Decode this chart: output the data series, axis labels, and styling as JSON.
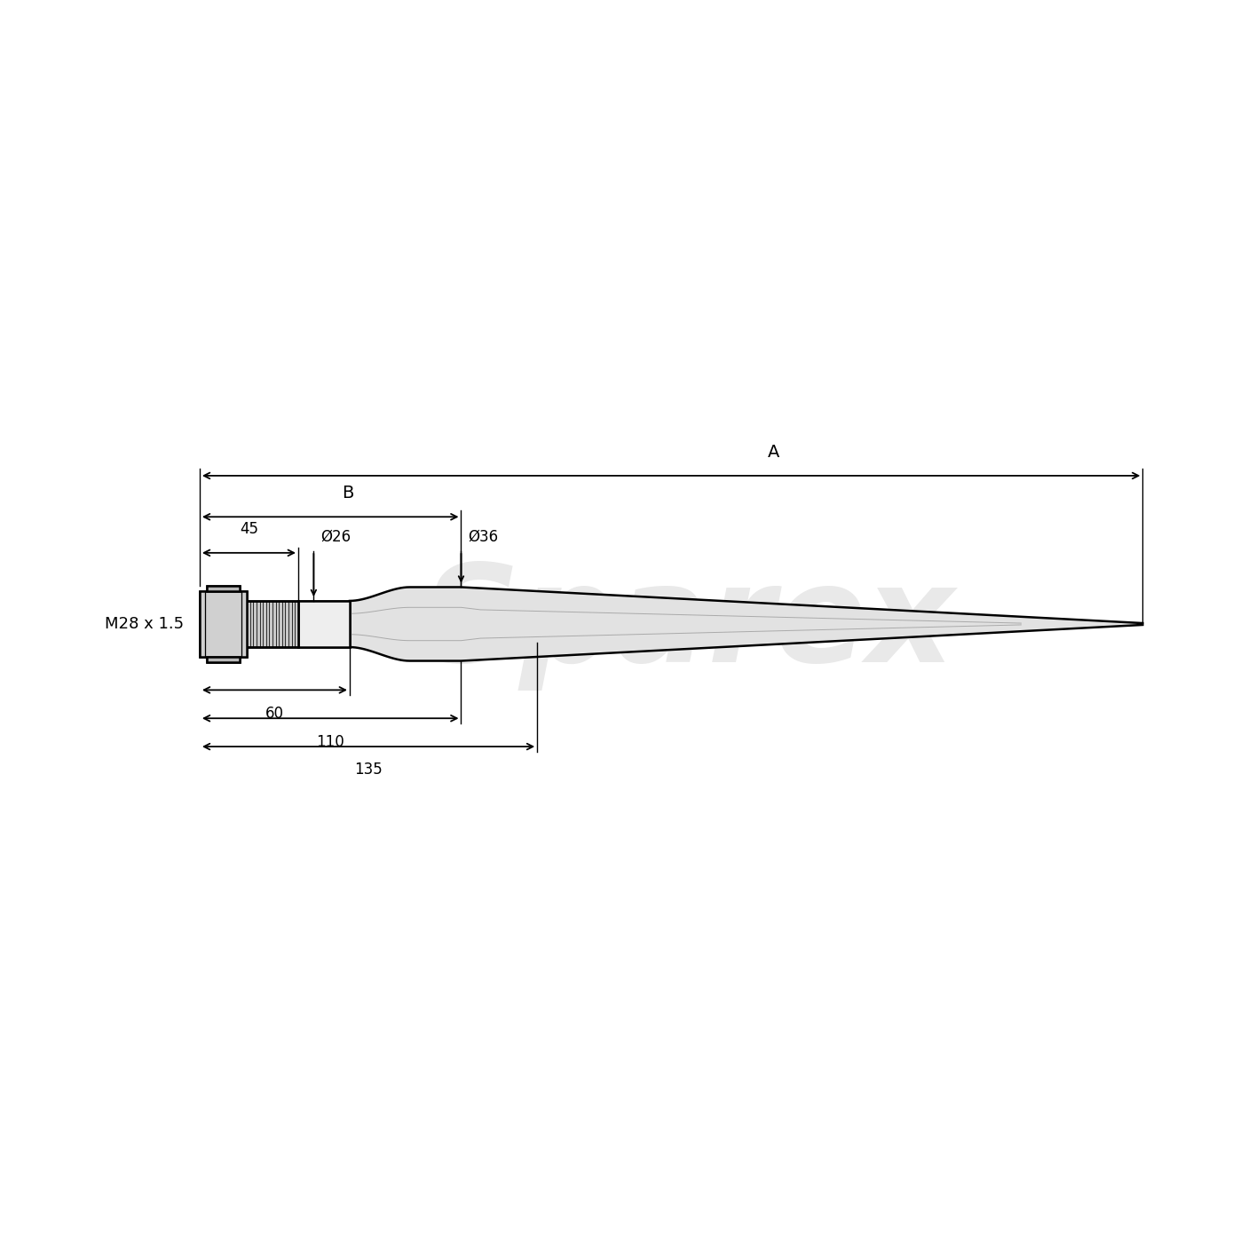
{
  "bg_color": "#ffffff",
  "line_color": "#000000",
  "watermark_text": "Sparex",
  "watermark_color": "#c8c8c8",
  "dim_A_label": "A",
  "dim_B_label": "B",
  "dim_45_label": "45",
  "dim_60_label": "60",
  "dim_110_label": "110",
  "dim_135_label": "135",
  "dim_d26_label": "Ø26",
  "dim_d36_label": "Ø36",
  "dim_thread_label": "M28 x 1.5",
  "figsize": [
    14.06,
    14.06
  ],
  "dpi": 100
}
